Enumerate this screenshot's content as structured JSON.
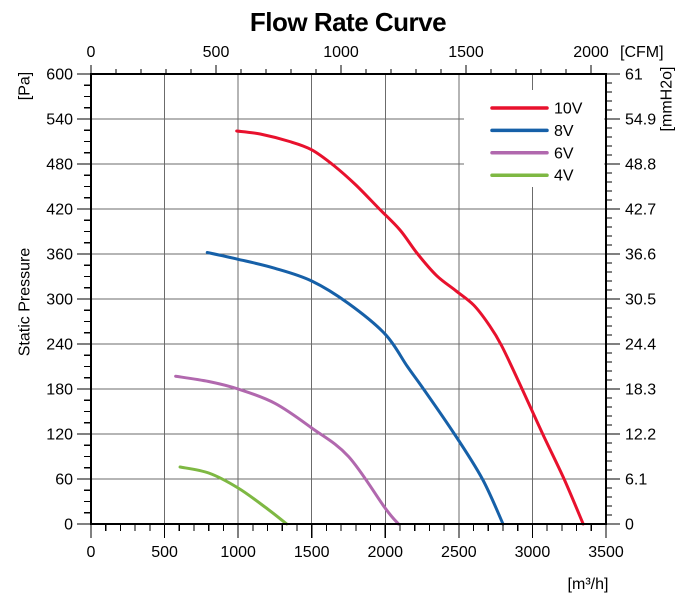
{
  "chart_data": {
    "type": "line",
    "title": "Flow Rate Curve",
    "x_axis_bottom": {
      "unit": "[m³/h]",
      "min": 0,
      "max": 3500,
      "major_step": 500,
      "minor_step": 100,
      "tick_labels": [
        "0",
        "500",
        "1000",
        "1500",
        "2000",
        "2500",
        "3000",
        "3500"
      ]
    },
    "x_axis_top": {
      "unit": "[CFM]",
      "min": 0,
      "max": 2000,
      "major_step": 500,
      "minor_step": 100,
      "scale_to_bottom": 1.699,
      "tick_labels": [
        "0",
        "500",
        "1000",
        "1500",
        "2000"
      ]
    },
    "y_axis_left": {
      "unit": "[Pa]",
      "axis_title": "Static Pressure",
      "min": 0,
      "max": 600,
      "major_step": 60,
      "minor_step": 15,
      "tick_labels": [
        "600",
        "540",
        "480",
        "420",
        "360",
        "300",
        "240",
        "180",
        "120",
        "60",
        "0"
      ]
    },
    "y_axis_right": {
      "unit": "[mmH2o]",
      "min": 0,
      "max": 61,
      "major_step": 6.1,
      "minor_step": 1.22,
      "tick_labels": [
        "61",
        "54.9",
        "48.8",
        "42.7",
        "36.6",
        "30.5",
        "24.4",
        "18.3",
        "12.2",
        "6.1",
        "0"
      ]
    },
    "grid": {
      "x_major_m3h": 500,
      "y_major_pa": 60,
      "color": "#6b6b6b"
    },
    "legend": {
      "position": "top-right",
      "entries": [
        "10V",
        "8V",
        "6V",
        "4V"
      ]
    },
    "series": [
      {
        "name": "10V",
        "color": "#e8112d",
        "points": [
          [
            990,
            524
          ],
          [
            1150,
            520
          ],
          [
            1350,
            510
          ],
          [
            1500,
            499
          ],
          [
            1650,
            478
          ],
          [
            1800,
            452
          ],
          [
            1960,
            420
          ],
          [
            2100,
            392
          ],
          [
            2220,
            360
          ],
          [
            2350,
            331
          ],
          [
            2480,
            311
          ],
          [
            2600,
            292
          ],
          [
            2700,
            267
          ],
          [
            2790,
            238
          ],
          [
            2930,
            180
          ],
          [
            3070,
            120
          ],
          [
            3215,
            60
          ],
          [
            3345,
            0
          ]
        ]
      },
      {
        "name": "8V",
        "color": "#1660a8",
        "points": [
          [
            790,
            362
          ],
          [
            1000,
            353
          ],
          [
            1250,
            341
          ],
          [
            1500,
            324
          ],
          [
            1750,
            294
          ],
          [
            2000,
            253
          ],
          [
            2150,
            210
          ],
          [
            2260,
            180
          ],
          [
            2470,
            120
          ],
          [
            2660,
            60
          ],
          [
            2800,
            0
          ]
        ]
      },
      {
        "name": "6V",
        "color": "#b168ae",
        "points": [
          [
            575,
            197
          ],
          [
            800,
            190
          ],
          [
            1000,
            180
          ],
          [
            1250,
            161
          ],
          [
            1500,
            128
          ],
          [
            1750,
            90
          ],
          [
            2000,
            21
          ],
          [
            2090,
            0
          ]
        ]
      },
      {
        "name": "4V",
        "color": "#7eb843",
        "points": [
          [
            605,
            76
          ],
          [
            800,
            68
          ],
          [
            1000,
            48
          ],
          [
            1200,
            20
          ],
          [
            1330,
            0
          ]
        ]
      }
    ]
  }
}
